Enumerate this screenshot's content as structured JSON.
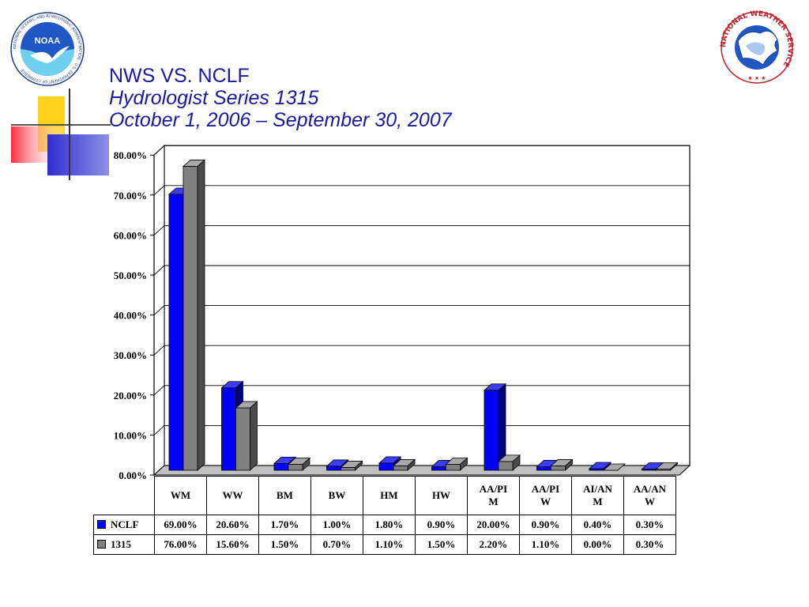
{
  "slide": {
    "title_lines": [
      "NWS VS. NCLF",
      "Hydrologist Series 1315",
      "October 1, 2006 – September 30, 2007"
    ]
  },
  "logos": {
    "noaa": {
      "center_text": "NOAA",
      "ring_text": "NATIONAL OCEANIC AND ATMOSPHERIC ADMINISTRATION · U.S. DEPARTMENT OF COMMERCE"
    },
    "nws": {
      "ring_text": "NATIONAL WEATHER SERVICE"
    }
  },
  "colors": {
    "title": "#1a1a9c",
    "nclf": "#0000ff",
    "s1315": "#808080",
    "deco_yellow": "#ffd21e",
    "deco_red": "#ff3040",
    "deco_blue": "#2f2fd0"
  },
  "chart_data": {
    "type": "bar",
    "categories": [
      "WM",
      "WW",
      "BM",
      "BW",
      "HM",
      "HW",
      "AA/PIM",
      "AA/PIW",
      "AI/ANM",
      "AA/ANW"
    ],
    "category_labels": [
      [
        "WM"
      ],
      [
        "WW"
      ],
      [
        "BM"
      ],
      [
        "BW"
      ],
      [
        "HM"
      ],
      [
        "HW"
      ],
      [
        "AA/PI",
        "M"
      ],
      [
        "AA/PI",
        "W"
      ],
      [
        "AI/AN",
        "M"
      ],
      [
        "AA/AN",
        "W"
      ]
    ],
    "series": [
      {
        "name": "NCLF",
        "values": [
          69.0,
          20.6,
          1.7,
          1.0,
          1.8,
          0.9,
          20.0,
          0.9,
          0.4,
          0.3
        ]
      },
      {
        "name": "1315",
        "values": [
          76.0,
          15.6,
          1.5,
          0.7,
          1.1,
          1.5,
          2.2,
          1.1,
          0.0,
          0.3
        ]
      }
    ],
    "table_values": [
      [
        "69.00%",
        "20.60%",
        "1.70%",
        "1.00%",
        "1.80%",
        "0.90%",
        "20.00%",
        "0.90%",
        "0.40%",
        "0.30%"
      ],
      [
        "76.00%",
        "15.60%",
        "1.50%",
        "0.70%",
        "1.10%",
        "1.50%",
        "2.20%",
        "1.10%",
        "0.00%",
        "0.30%"
      ]
    ],
    "y_ticks": [
      "0.00%",
      "10.00%",
      "20.00%",
      "30.00%",
      "40.00%",
      "50.00%",
      "60.00%",
      "70.00%",
      "80.00%"
    ],
    "ylim": [
      0,
      80
    ],
    "y_unit": "%",
    "grid": true,
    "three_d": true,
    "legend": "data-table"
  }
}
